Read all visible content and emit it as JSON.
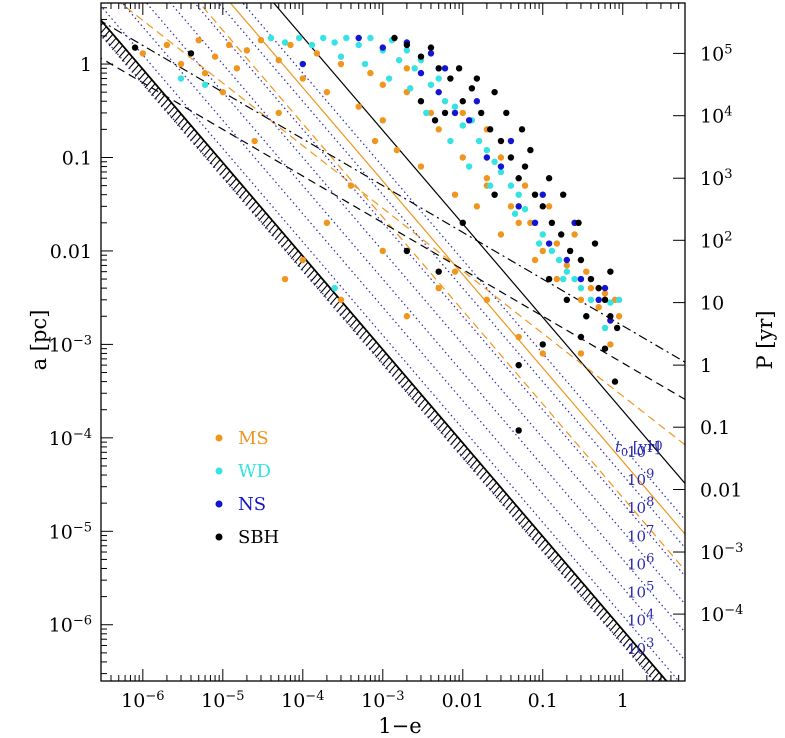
{
  "chart_data": {
    "type": "scatter",
    "xlabel": "1−e",
    "ylabel_left": "a [pc]",
    "ylabel_right": "P [yr]",
    "x_scale": "log",
    "y_scale": "log",
    "xlim": [
      3e-07,
      6
    ],
    "ylim": [
      2.5e-07,
      4.5
    ],
    "x_ticks": [
      {
        "value": 1e-06,
        "label": "10",
        "exp": "−6"
      },
      {
        "value": 1e-05,
        "label": "10",
        "exp": "−5"
      },
      {
        "value": 0.0001,
        "label": "10",
        "exp": "−4"
      },
      {
        "value": 0.001,
        "label": "10",
        "exp": "−3"
      },
      {
        "value": 0.01,
        "label": "0.01",
        "exp": ""
      },
      {
        "value": 0.1,
        "label": "0.1",
        "exp": ""
      },
      {
        "value": 1,
        "label": "1",
        "exp": ""
      }
    ],
    "y_ticks_left": [
      {
        "value": 1,
        "label": "1",
        "exp": ""
      },
      {
        "value": 0.1,
        "label": "0.1",
        "exp": ""
      },
      {
        "value": 0.01,
        "label": "0.01",
        "exp": ""
      },
      {
        "value": 0.001,
        "label": "10",
        "exp": "−3"
      },
      {
        "value": 0.0001,
        "label": "10",
        "exp": "−4"
      },
      {
        "value": 1e-05,
        "label": "10",
        "exp": "−5"
      },
      {
        "value": 1e-06,
        "label": "10",
        "exp": "−6"
      }
    ],
    "y_ticks_right": [
      {
        "a": 1.3,
        "label": "10",
        "exp": "5"
      },
      {
        "a": 0.28,
        "label": "10",
        "exp": "4"
      },
      {
        "a": 0.06,
        "label": "10",
        "exp": "3"
      },
      {
        "a": 0.013,
        "label": "10",
        "exp": "2"
      },
      {
        "a": 0.0028,
        "label": "10",
        "exp": ""
      },
      {
        "a": 0.0006,
        "label": "1",
        "exp": ""
      },
      {
        "a": 0.00013,
        "label": "0.1",
        "exp": ""
      },
      {
        "a": 2.8e-05,
        "label": "0.01",
        "exp": ""
      },
      {
        "a": 6e-06,
        "label": "10",
        "exp": "−3"
      },
      {
        "a": 1.3e-06,
        "label": "10",
        "exp": "−4"
      }
    ],
    "t0_title": {
      "sym": "t",
      "sub": "0",
      "unit": " [yr]"
    },
    "t0_labels": [
      {
        "label": "10",
        "exp": "10",
        "a": 8e-05
      },
      {
        "label": "10",
        "exp": "9",
        "a": 4e-05
      },
      {
        "label": "10",
        "exp": "8",
        "a": 2e-05
      },
      {
        "label": "10",
        "exp": "7",
        "a": 1e-05
      },
      {
        "label": "10",
        "exp": "6",
        "a": 5e-06
      },
      {
        "label": "10",
        "exp": "5",
        "a": 2.5e-06
      },
      {
        "label": "10",
        "exp": "4",
        "a": 1.25e-06
      },
      {
        "label": "10",
        "exp": "3",
        "a": 6.2e-07
      }
    ],
    "legend": {
      "placement": "lower-left",
      "entries": [
        {
          "name": "MS",
          "color": "#f0961e"
        },
        {
          "name": "WD",
          "color": "#36e2e2"
        },
        {
          "name": "NS",
          "color": "#1414d2"
        },
        {
          "name": "SBH",
          "color": "#000000"
        }
      ]
    },
    "lines": [
      {
        "name": "disruption-limit",
        "style": "solid-hatched",
        "color": "#000000",
        "slope": -1,
        "x0": 4e-07,
        "y0": 2.2
      },
      {
        "name": "black-solid",
        "style": "solid",
        "color": "#000000",
        "slope": -1,
        "x0": 3e-05,
        "y0": 6.5
      },
      {
        "name": "orange-solid",
        "style": "solid",
        "color": "#f0961e",
        "slope": -1,
        "x0": 2e-05,
        "y0": 2.8
      },
      {
        "name": "orange-dashed-1",
        "style": "dashed",
        "color": "#f0961e",
        "slope": -1,
        "x0": 1e-05,
        "y0": 2.3
      },
      {
        "name": "orange-dashed-2",
        "style": "dashed",
        "color": "#f0961e",
        "slope": -0.67,
        "x0": 3e-05,
        "y0": 0.3
      },
      {
        "name": "black-dashdot",
        "style": "dashdot",
        "color": "#000000",
        "slope": -0.5,
        "x0": 1e-05,
        "y0": 0.5
      },
      {
        "name": "black-dashed",
        "style": "dashed",
        "color": "#000000",
        "slope": -0.5,
        "x0": 1e-05,
        "y0": 0.2
      },
      {
        "name": "isochrone-1e10",
        "style": "dotted",
        "color": "#2b2bb0",
        "slope": -1,
        "x0": 1,
        "y0": 8e-05
      },
      {
        "name": "isochrone-1e9",
        "style": "dotted",
        "color": "#2b2bb0",
        "slope": -1,
        "x0": 1,
        "y0": 4e-05
      },
      {
        "name": "isochrone-1e8",
        "style": "dotted",
        "color": "#2b2bb0",
        "slope": -1,
        "x0": 1,
        "y0": 2e-05
      },
      {
        "name": "isochrone-1e7",
        "style": "dotted",
        "color": "#2b2bb0",
        "slope": -1,
        "x0": 1,
        "y0": 1e-05
      },
      {
        "name": "isochrone-1e6",
        "style": "dotted",
        "color": "#2b2bb0",
        "slope": -1,
        "x0": 1,
        "y0": 5e-06
      },
      {
        "name": "isochrone-1e5",
        "style": "dotted",
        "color": "#2b2bb0",
        "slope": -1,
        "x0": 1,
        "y0": 2.5e-06
      },
      {
        "name": "isochrone-1e4",
        "style": "dotted",
        "color": "#2b2bb0",
        "slope": -1,
        "x0": 1,
        "y0": 1.25e-06
      },
      {
        "name": "isochrone-1e3",
        "style": "dotted",
        "color": "#2b2bb0",
        "slope": -1,
        "x0": 1,
        "y0": 6.2e-07
      }
    ],
    "series": [
      {
        "name": "MS",
        "color": "#f0961e",
        "points": [
          [
            1e-06,
            1.3
          ],
          [
            2e-06,
            1.6
          ],
          [
            3e-06,
            1.0
          ],
          [
            5e-06,
            1.8
          ],
          [
            8e-06,
            1.2
          ],
          [
            1.2e-05,
            1.6
          ],
          [
            1.5e-05,
            0.9
          ],
          [
            2e-05,
            1.4
          ],
          [
            3e-05,
            1.8
          ],
          [
            5e-05,
            1.1
          ],
          [
            7e-05,
            1.6
          ],
          [
            0.0001,
            0.7
          ],
          [
            0.00015,
            1.3
          ],
          [
            0.0002,
            0.5
          ],
          [
            0.0003,
            1.0
          ],
          [
            0.0005,
            0.35
          ],
          [
            0.0007,
            0.8
          ],
          [
            0.001,
            0.25
          ],
          [
            0.0015,
            0.12
          ],
          [
            0.002,
            0.5
          ],
          [
            0.003,
            0.08
          ],
          [
            0.005,
            0.2
          ],
          [
            0.008,
            0.04
          ],
          [
            0.01,
            0.1
          ],
          [
            0.015,
            0.03
          ],
          [
            0.02,
            0.06
          ],
          [
            0.03,
            0.015
          ],
          [
            0.05,
            0.02
          ],
          [
            0.08,
            0.008
          ],
          [
            0.1,
            0.01
          ],
          [
            0.15,
            0.005
          ],
          [
            0.2,
            0.007
          ],
          [
            0.3,
            0.003
          ],
          [
            0.4,
            0.004
          ],
          [
            0.5,
            0.0025
          ],
          [
            0.6,
            0.0035
          ],
          [
            0.8,
            0.003
          ],
          [
            0.9,
            0.002
          ],
          [
            0.7,
            0.001
          ],
          [
            0.3,
            0.0008
          ],
          [
            0.0004,
            0.05
          ],
          [
            0.0002,
            0.02
          ],
          [
            0.0001,
            0.008
          ],
          [
            6e-05,
            0.005
          ],
          [
            0.0003,
            0.003
          ],
          [
            0.001,
            0.01
          ],
          [
            0.002,
            0.002
          ],
          [
            0.005,
            0.004
          ],
          [
            0.0008,
            0.15
          ],
          [
            0.004,
            0.3
          ],
          [
            0.01,
            0.3
          ],
          [
            0.02,
            0.2
          ],
          [
            0.03,
            0.1
          ],
          [
            0.06,
            0.05
          ],
          [
            0.12,
            0.03
          ],
          [
            0.25,
            0.015
          ],
          [
            5e-05,
            0.3
          ],
          [
            2.5e-05,
            0.15
          ],
          [
            1e-05,
            0.5
          ],
          [
            6e-06,
            0.8
          ],
          [
            0.001,
            0.6
          ],
          [
            0.002,
            0.9
          ],
          [
            0.02,
            0.05
          ],
          [
            0.04,
            0.03
          ],
          [
            0.07,
            0.02
          ],
          [
            0.15,
            0.012
          ],
          [
            0.35,
            0.006
          ],
          [
            0.5,
            0.004
          ],
          [
            0.05,
            0.0012
          ],
          [
            0.1,
            0.0008
          ],
          [
            0.02,
            0.003
          ],
          [
            0.008,
            0.006
          ]
        ]
      },
      {
        "name": "WD",
        "color": "#36e2e2",
        "points": [
          [
            3e-06,
            0.7
          ],
          [
            4e-05,
            1.9
          ],
          [
            6e-05,
            1.7
          ],
          [
            9e-05,
            1.9
          ],
          [
            0.00013,
            1.6
          ],
          [
            0.00018,
            1.9
          ],
          [
            0.00025,
            1.7
          ],
          [
            0.00035,
            1.9
          ],
          [
            0.0005,
            1.6
          ],
          [
            0.0007,
            1.9
          ],
          [
            0.001,
            1.4
          ],
          [
            0.0013,
            1.8
          ],
          [
            0.0016,
            1.1
          ],
          [
            0.002,
            1.4
          ],
          [
            0.0025,
            0.9
          ],
          [
            0.003,
            1.1
          ],
          [
            0.004,
            0.6
          ],
          [
            0.005,
            0.7
          ],
          [
            0.006,
            0.4
          ],
          [
            0.008,
            0.35
          ],
          [
            0.01,
            0.22
          ],
          [
            0.013,
            0.25
          ],
          [
            0.016,
            0.15
          ],
          [
            0.02,
            0.12
          ],
          [
            0.025,
            0.09
          ],
          [
            0.03,
            0.07
          ],
          [
            0.04,
            0.05
          ],
          [
            0.05,
            0.04
          ],
          [
            0.06,
            0.028
          ],
          [
            0.08,
            0.02
          ],
          [
            0.1,
            0.015
          ],
          [
            0.13,
            0.01
          ],
          [
            0.16,
            0.008
          ],
          [
            0.2,
            0.006
          ],
          [
            0.25,
            0.005
          ],
          [
            0.3,
            0.004
          ],
          [
            0.4,
            0.003
          ],
          [
            0.5,
            0.003
          ],
          [
            0.7,
            0.0028
          ],
          [
            0.9,
            0.003
          ],
          [
            0.0003,
            1.2
          ],
          [
            0.0006,
            1.0
          ],
          [
            0.0012,
            0.7
          ],
          [
            0.0022,
            0.55
          ],
          [
            0.0035,
            0.3
          ],
          [
            0.007,
            0.15
          ],
          [
            0.012,
            0.08
          ],
          [
            0.022,
            0.05
          ],
          [
            0.045,
            0.025
          ],
          [
            0.09,
            0.012
          ],
          [
            0.18,
            0.005
          ],
          [
            0.35,
            0.002
          ],
          [
            0.6,
            0.0015
          ],
          [
            0.00025,
            0.004
          ],
          [
            6e-06,
            0.6
          ]
        ]
      },
      {
        "name": "NS",
        "color": "#1414d2",
        "points": [
          [
            0.0001,
            1.0
          ],
          [
            0.0005,
            1.9
          ],
          [
            0.001,
            1.5
          ],
          [
            0.002,
            1.7
          ],
          [
            0.003,
            0.8
          ],
          [
            0.005,
            0.5
          ],
          [
            0.008,
            0.3
          ],
          [
            0.012,
            0.25
          ],
          [
            0.02,
            0.1
          ],
          [
            0.03,
            0.08
          ],
          [
            0.05,
            0.03
          ],
          [
            0.08,
            0.02
          ],
          [
            0.12,
            0.012
          ],
          [
            0.2,
            0.008
          ],
          [
            0.3,
            0.005
          ],
          [
            0.5,
            0.003
          ],
          [
            0.7,
            0.0018
          ],
          [
            0.004,
            1.3
          ],
          [
            0.006,
            0.9
          ],
          [
            0.015,
            0.4
          ],
          [
            0.04,
            0.15
          ],
          [
            0.1,
            0.04
          ],
          [
            0.25,
            0.02
          ],
          [
            0.6,
            0.004
          ]
        ]
      },
      {
        "name": "SBH",
        "color": "#000000",
        "points": [
          [
            8e-07,
            1.5
          ],
          [
            4e-06,
            1.3
          ],
          [
            0.0014,
            1.9
          ],
          [
            0.002,
            1.6
          ],
          [
            0.003,
            1.2
          ],
          [
            0.004,
            1.5
          ],
          [
            0.005,
            0.9
          ],
          [
            0.007,
            0.7
          ],
          [
            0.01,
            0.4
          ],
          [
            0.013,
            0.55
          ],
          [
            0.017,
            0.3
          ],
          [
            0.022,
            0.2
          ],
          [
            0.03,
            0.15
          ],
          [
            0.04,
            0.1
          ],
          [
            0.05,
            0.06
          ],
          [
            0.06,
            0.08
          ],
          [
            0.08,
            0.04
          ],
          [
            0.1,
            0.03
          ],
          [
            0.13,
            0.02
          ],
          [
            0.17,
            0.015
          ],
          [
            0.22,
            0.01
          ],
          [
            0.3,
            0.008
          ],
          [
            0.4,
            0.005
          ],
          [
            0.5,
            0.004
          ],
          [
            0.6,
            0.003
          ],
          [
            0.7,
            0.002
          ],
          [
            0.85,
            0.0015
          ],
          [
            0.3,
            0.0012
          ],
          [
            0.1,
            0.001
          ],
          [
            0.05,
            0.0006
          ],
          [
            0.6,
            0.0009
          ],
          [
            0.8,
            0.0004
          ],
          [
            0.005,
            0.006
          ],
          [
            0.002,
            0.01
          ],
          [
            0.01,
            0.02
          ],
          [
            0.025,
            0.04
          ],
          [
            0.006,
            0.3
          ],
          [
            0.009,
            0.9
          ],
          [
            0.015,
            0.7
          ],
          [
            0.025,
            0.5
          ],
          [
            0.035,
            0.3
          ],
          [
            0.055,
            0.2
          ],
          [
            0.07,
            0.12
          ],
          [
            0.12,
            0.06
          ],
          [
            0.18,
            0.04
          ],
          [
            0.28,
            0.02
          ],
          [
            0.45,
            0.012
          ],
          [
            0.7,
            0.006
          ],
          [
            0.003,
            0.4
          ],
          [
            0.0045,
            0.25
          ],
          [
            0.12,
            0.005
          ],
          [
            0.2,
            0.003
          ],
          [
            0.35,
            0.002
          ],
          [
            0.05,
            0.00012
          ]
        ]
      }
    ]
  }
}
